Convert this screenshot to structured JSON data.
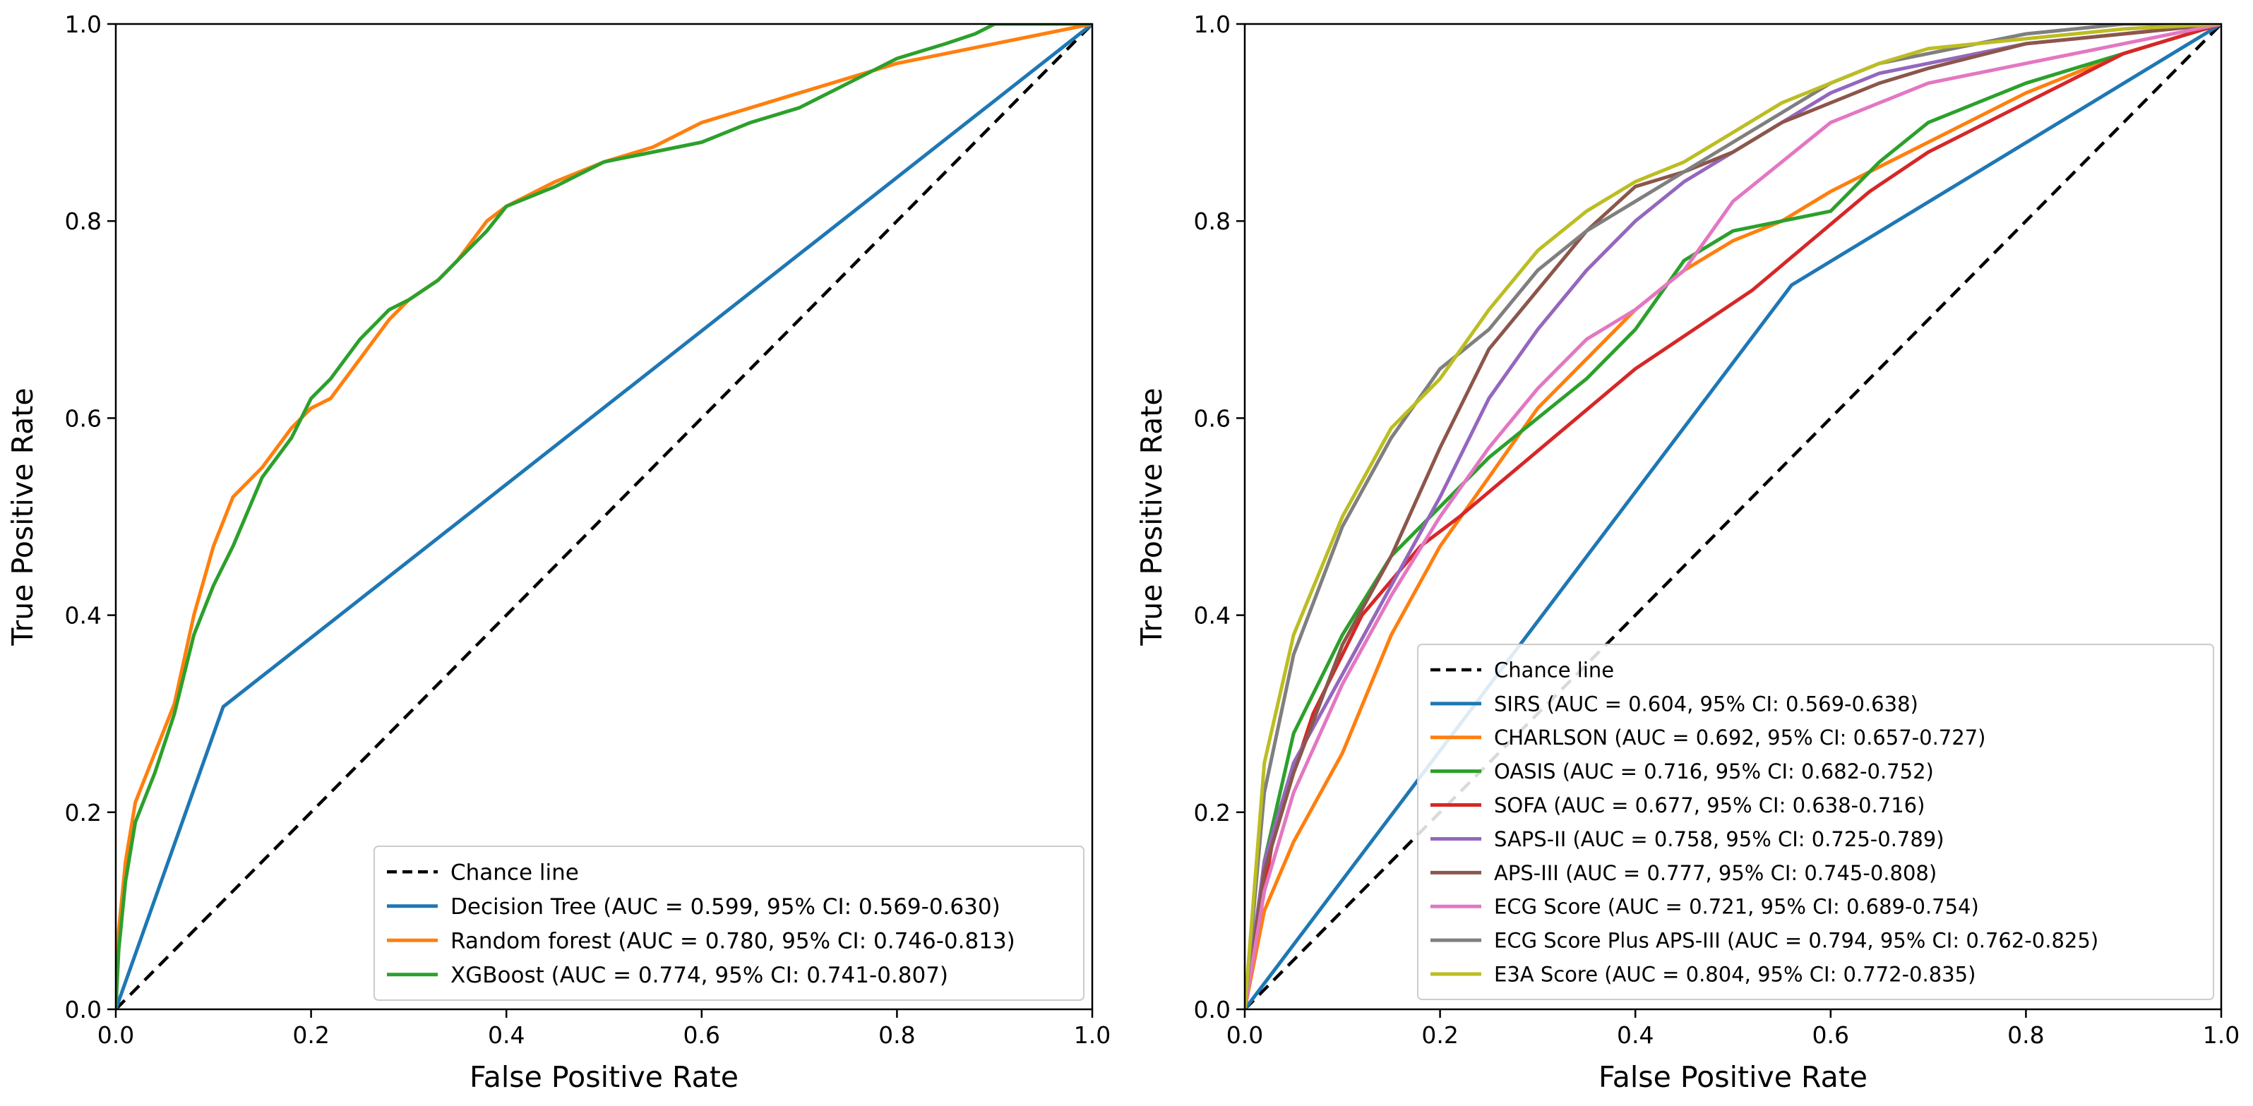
{
  "chart_data": [
    {
      "type": "line",
      "xlabel": "False Positive Rate",
      "ylabel": "True Positive Rate",
      "xlim": [
        0,
        1
      ],
      "ylim": [
        0,
        1
      ],
      "xticks": [
        "0.0",
        "0.2",
        "0.4",
        "0.6",
        "0.8",
        "1.0"
      ],
      "yticks": [
        "0.0",
        "0.2",
        "0.4",
        "0.6",
        "0.8",
        "1.0"
      ],
      "grid": false,
      "legend_position": "bottom-right",
      "series": [
        {
          "name": "Chance line",
          "label": "Chance line",
          "color": "#000000",
          "dashed": true,
          "x": [
            0,
            1
          ],
          "y": [
            0,
            1
          ]
        },
        {
          "name": "Decision Tree",
          "label": "Decision Tree (AUC = 0.599, 95% CI: 0.569-0.630)",
          "color": "#1f77b4",
          "x": [
            0,
            0.11,
            1
          ],
          "y": [
            0,
            0.307,
            1
          ]
        },
        {
          "name": "Random forest",
          "label": "Random forest (AUC = 0.780, 95% CI: 0.746-0.813)",
          "color": "#ff7f0e",
          "x": [
            0,
            0.003,
            0.01,
            0.02,
            0.04,
            0.06,
            0.08,
            0.1,
            0.12,
            0.15,
            0.18,
            0.2,
            0.22,
            0.25,
            0.28,
            0.3,
            0.33,
            0.35,
            0.38,
            0.4,
            0.45,
            0.5,
            0.55,
            0.6,
            0.65,
            0.7,
            0.75,
            0.8,
            0.85,
            0.9,
            0.95,
            1.0
          ],
          "y": [
            0,
            0.08,
            0.15,
            0.21,
            0.26,
            0.31,
            0.4,
            0.47,
            0.52,
            0.55,
            0.59,
            0.61,
            0.62,
            0.66,
            0.7,
            0.72,
            0.74,
            0.76,
            0.8,
            0.815,
            0.84,
            0.86,
            0.875,
            0.9,
            0.915,
            0.93,
            0.945,
            0.96,
            0.97,
            0.98,
            0.99,
            1.0
          ]
        },
        {
          "name": "XGBoost",
          "label": "XGBoost (AUC = 0.774, 95% CI: 0.741-0.807)",
          "color": "#2ca02c",
          "x": [
            0,
            0.003,
            0.01,
            0.02,
            0.04,
            0.06,
            0.08,
            0.1,
            0.12,
            0.15,
            0.18,
            0.2,
            0.22,
            0.25,
            0.28,
            0.3,
            0.33,
            0.35,
            0.38,
            0.4,
            0.45,
            0.5,
            0.55,
            0.6,
            0.65,
            0.7,
            0.75,
            0.8,
            0.85,
            0.88,
            0.9,
            0.95,
            1.0
          ],
          "y": [
            0,
            0.06,
            0.13,
            0.19,
            0.24,
            0.3,
            0.38,
            0.43,
            0.47,
            0.54,
            0.58,
            0.62,
            0.64,
            0.68,
            0.71,
            0.72,
            0.74,
            0.76,
            0.79,
            0.815,
            0.835,
            0.86,
            0.87,
            0.88,
            0.9,
            0.915,
            0.94,
            0.965,
            0.98,
            0.99,
            1.0,
            1.0,
            1.0
          ]
        }
      ]
    },
    {
      "type": "line",
      "xlabel": "False Positive Rate",
      "ylabel": "True Positive Rate",
      "xlim": [
        0,
        1
      ],
      "ylim": [
        0,
        1
      ],
      "xticks": [
        "0.0",
        "0.2",
        "0.4",
        "0.6",
        "0.8",
        "1.0"
      ],
      "yticks": [
        "0.0",
        "0.2",
        "0.4",
        "0.6",
        "0.8",
        "1.0"
      ],
      "grid": false,
      "legend_position": "bottom-right",
      "series": [
        {
          "name": "Chance line",
          "label": "Chance line",
          "color": "#000000",
          "dashed": true,
          "x": [
            0,
            1
          ],
          "y": [
            0,
            1
          ]
        },
        {
          "name": "SIRS",
          "label": "SIRS (AUC = 0.604, 95% CI: 0.569-0.638)",
          "color": "#1f77b4",
          "x": [
            0,
            0.56,
            1
          ],
          "y": [
            0,
            0.735,
            1
          ]
        },
        {
          "name": "CHARLSON",
          "label": "CHARLSON (AUC = 0.692, 95% CI: 0.657-0.727)",
          "color": "#ff7f0e",
          "x": [
            0,
            0.02,
            0.05,
            0.1,
            0.15,
            0.2,
            0.25,
            0.3,
            0.35,
            0.4,
            0.45,
            0.5,
            0.55,
            0.6,
            0.7,
            0.8,
            0.9,
            1.0
          ],
          "y": [
            0,
            0.1,
            0.17,
            0.26,
            0.38,
            0.47,
            0.54,
            0.61,
            0.66,
            0.71,
            0.75,
            0.78,
            0.8,
            0.83,
            0.88,
            0.93,
            0.97,
            1.0
          ]
        },
        {
          "name": "OASIS",
          "label": "OASIS (AUC = 0.716, 95% CI: 0.682-0.752)",
          "color": "#2ca02c",
          "x": [
            0,
            0.02,
            0.05,
            0.1,
            0.15,
            0.2,
            0.25,
            0.3,
            0.35,
            0.4,
            0.45,
            0.5,
            0.55,
            0.6,
            0.65,
            0.7,
            0.8,
            0.9,
            1.0
          ],
          "y": [
            0,
            0.15,
            0.28,
            0.38,
            0.46,
            0.51,
            0.56,
            0.6,
            0.64,
            0.69,
            0.76,
            0.79,
            0.8,
            0.81,
            0.86,
            0.9,
            0.94,
            0.97,
            1.0
          ]
        },
        {
          "name": "SOFA",
          "label": "SOFA (AUC = 0.677, 95% CI: 0.638-0.716)",
          "color": "#d62728",
          "x": [
            0,
            0.03,
            0.07,
            0.12,
            0.18,
            0.22,
            0.28,
            0.34,
            0.4,
            0.46,
            0.52,
            0.58,
            0.64,
            0.7,
            0.8,
            0.9,
            1.0
          ],
          "y": [
            0,
            0.18,
            0.3,
            0.4,
            0.47,
            0.5,
            0.55,
            0.6,
            0.65,
            0.69,
            0.73,
            0.78,
            0.83,
            0.87,
            0.92,
            0.97,
            1.0
          ]
        },
        {
          "name": "SAPS-II",
          "label": "SAPS-II (AUC = 0.758, 95% CI: 0.725-0.789)",
          "color": "#9467bd",
          "x": [
            0,
            0.02,
            0.05,
            0.1,
            0.15,
            0.2,
            0.25,
            0.3,
            0.35,
            0.4,
            0.45,
            0.5,
            0.55,
            0.6,
            0.65,
            0.7,
            0.8,
            0.9,
            1.0
          ],
          "y": [
            0,
            0.15,
            0.25,
            0.34,
            0.43,
            0.52,
            0.62,
            0.69,
            0.75,
            0.8,
            0.84,
            0.87,
            0.9,
            0.93,
            0.95,
            0.96,
            0.98,
            0.99,
            1.0
          ]
        },
        {
          "name": "APS-III",
          "label": "APS-III (AUC = 0.777, 95% CI: 0.745-0.808)",
          "color": "#8c564b",
          "x": [
            0,
            0.02,
            0.05,
            0.1,
            0.15,
            0.2,
            0.25,
            0.3,
            0.35,
            0.4,
            0.45,
            0.5,
            0.55,
            0.6,
            0.65,
            0.7,
            0.8,
            0.9,
            1.0
          ],
          "y": [
            0,
            0.14,
            0.24,
            0.37,
            0.46,
            0.57,
            0.67,
            0.73,
            0.79,
            0.835,
            0.85,
            0.87,
            0.9,
            0.92,
            0.94,
            0.955,
            0.98,
            0.99,
            1.0
          ]
        },
        {
          "name": "ECG Score",
          "label": "ECG Score (AUC = 0.721, 95% CI: 0.689-0.754)",
          "color": "#e377c2",
          "x": [
            0,
            0.02,
            0.05,
            0.1,
            0.15,
            0.2,
            0.25,
            0.3,
            0.35,
            0.4,
            0.45,
            0.5,
            0.55,
            0.6,
            0.65,
            0.7,
            0.8,
            0.9,
            1.0
          ],
          "y": [
            0,
            0.12,
            0.22,
            0.33,
            0.42,
            0.5,
            0.57,
            0.63,
            0.68,
            0.71,
            0.75,
            0.82,
            0.86,
            0.9,
            0.92,
            0.94,
            0.96,
            0.98,
            1.0
          ]
        },
        {
          "name": "ECG Score Plus APS-III",
          "label": "ECG Score Plus APS-III (AUC = 0.794, 95% CI: 0.762-0.825)",
          "color": "#7f7f7f",
          "x": [
            0,
            0.02,
            0.05,
            0.1,
            0.15,
            0.2,
            0.25,
            0.3,
            0.35,
            0.4,
            0.45,
            0.5,
            0.55,
            0.6,
            0.65,
            0.7,
            0.8,
            0.9,
            1.0
          ],
          "y": [
            0,
            0.22,
            0.36,
            0.49,
            0.58,
            0.65,
            0.69,
            0.75,
            0.79,
            0.82,
            0.85,
            0.88,
            0.91,
            0.94,
            0.96,
            0.97,
            0.99,
            1.0,
            1.0
          ]
        },
        {
          "name": "E3A Score",
          "label": "E3A Score (AUC = 0.804, 95% CI: 0.772-0.835)",
          "color": "#bcbd22",
          "x": [
            0,
            0.02,
            0.05,
            0.1,
            0.15,
            0.2,
            0.25,
            0.3,
            0.35,
            0.4,
            0.45,
            0.5,
            0.55,
            0.6,
            0.65,
            0.7,
            0.8,
            0.9,
            1.0
          ],
          "y": [
            0,
            0.25,
            0.38,
            0.5,
            0.59,
            0.64,
            0.71,
            0.77,
            0.81,
            0.84,
            0.86,
            0.89,
            0.92,
            0.94,
            0.96,
            0.975,
            0.985,
            0.995,
            1.0
          ]
        }
      ]
    }
  ]
}
